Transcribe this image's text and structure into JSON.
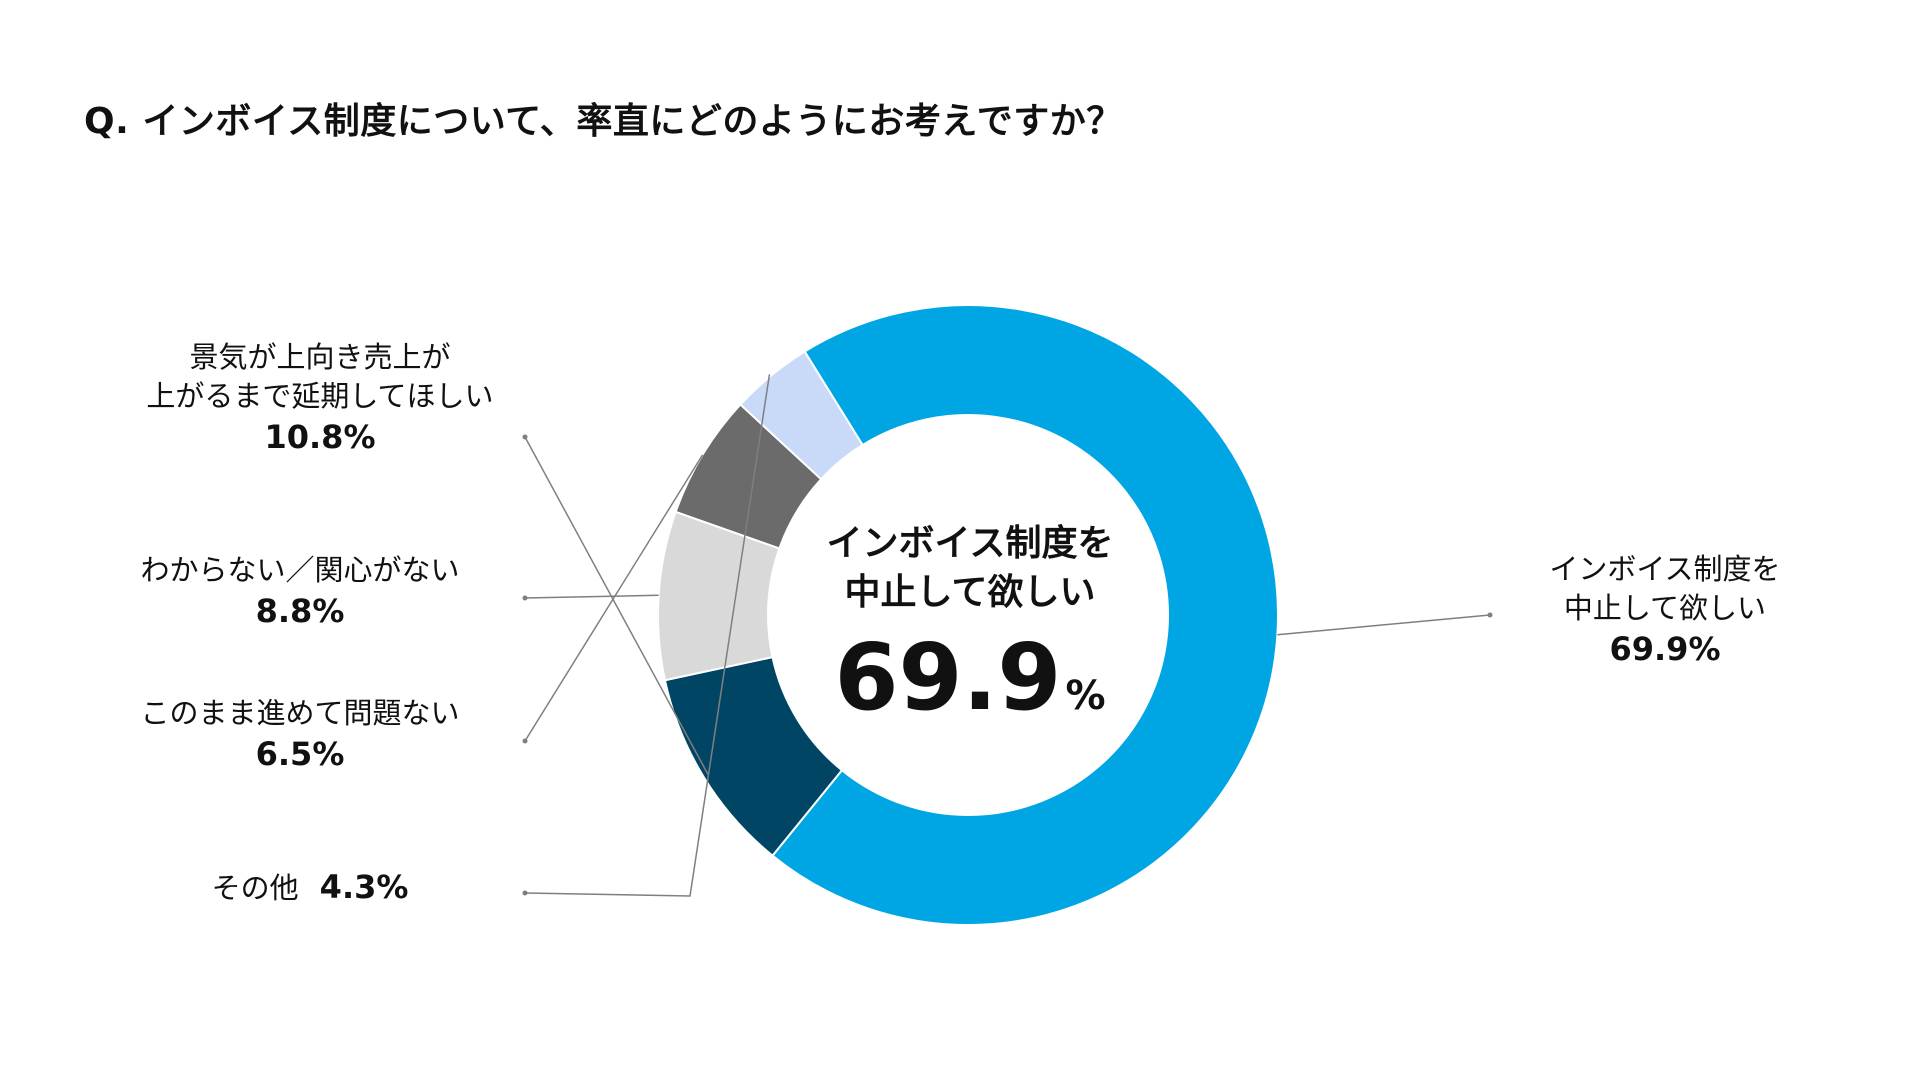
{
  "question": "Q. インボイス制度について、率直にどのようにお考えですか？",
  "chart_data": {
    "type": "pie",
    "donut": true,
    "categories": [
      "インボイス制度を中止して欲しい",
      "景気が上向き売上が上がるまで延期してほしい",
      "わからない／関心がない",
      "このまま進めて問題ない",
      "その他"
    ],
    "values": [
      69.9,
      10.8,
      8.8,
      6.5,
      4.3
    ],
    "unit": "%",
    "colors": [
      "#00A5E3",
      "#004664",
      "#D9D9D9",
      "#6B6B6B",
      "#C9DAF8"
    ],
    "labels": [
      {
        "text": "インボイス制度を\n中止して欲しい",
        "value": "69.9%"
      },
      {
        "text": "景気が上向き売上が\n上がるまで延期してほしい",
        "value": "10.8%"
      },
      {
        "text": "わからない／関心がない",
        "value": "8.8%"
      },
      {
        "text": "このまま進めて問題ない",
        "value": "6.5%"
      },
      {
        "text": "その他",
        "value": "4.3%"
      }
    ],
    "center": {
      "text": "インボイス制度を\n中止して欲しい",
      "value": "69.9",
      "unit": "%"
    }
  }
}
